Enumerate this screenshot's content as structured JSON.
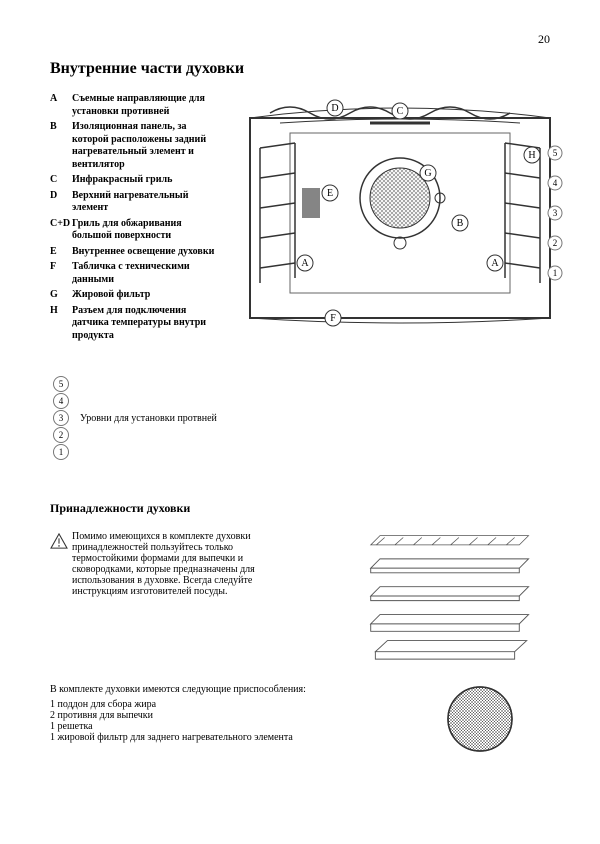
{
  "page_number": "20",
  "title": "Внутренние части духовки",
  "legend": [
    {
      "key": "A",
      "desc": "Съемные направляющие для установки противней"
    },
    {
      "key": "B",
      "desc": "Изоляционная панель, за которой расположены задний нагревательный элемент и вентилятор"
    },
    {
      "key": "C",
      "desc": "Инфракрасный гриль"
    },
    {
      "key": "D",
      "desc": "Верхний нагревательный элемент"
    },
    {
      "key": "C+D",
      "desc": "Гриль для обжаривания большой поверхности"
    },
    {
      "key": "E",
      "desc": "Внутреннее освещение духовки"
    },
    {
      "key": "F",
      "desc": "Табличка с техническими данными"
    },
    {
      "key": "G",
      "desc": "Жировой фильтр"
    },
    {
      "key": "H",
      "desc": "Разъем для подключения датчика температуры внутри продукта"
    }
  ],
  "diagram": {
    "stroke": "#333333",
    "fill_bg": "#ffffff",
    "rail_levels": 5,
    "letters": [
      "A",
      "B",
      "C",
      "D",
      "E",
      "F",
      "G",
      "H"
    ],
    "level_numbers": [
      "5",
      "4",
      "3",
      "2",
      "1"
    ]
  },
  "levels_caption": "Уровни для установки протвней",
  "accessories_heading": "Принадлежности духовки",
  "caution_text": "Помимо имеющихся в комплекте духовки принадлежностей пользуйтесь только термостойкими формами для выпечки и сковородками, которые предназначены для использования в духовке. Всегда следуйте инструкциям изготовителей посуды.",
  "accessory_stack": {
    "items": 4,
    "stroke": "#555555"
  },
  "acc_list_intro": "В комплекте духовки имеются следующие приспособления:",
  "acc_list": [
    "1 поддон для сбора жира",
    "2 противня для выпечки",
    "1 решетка",
    "1 жировой фильтр для заднего нагревательного элемента"
  ],
  "filter_circle": {
    "stroke": "#333333",
    "hatch": "#555555"
  }
}
